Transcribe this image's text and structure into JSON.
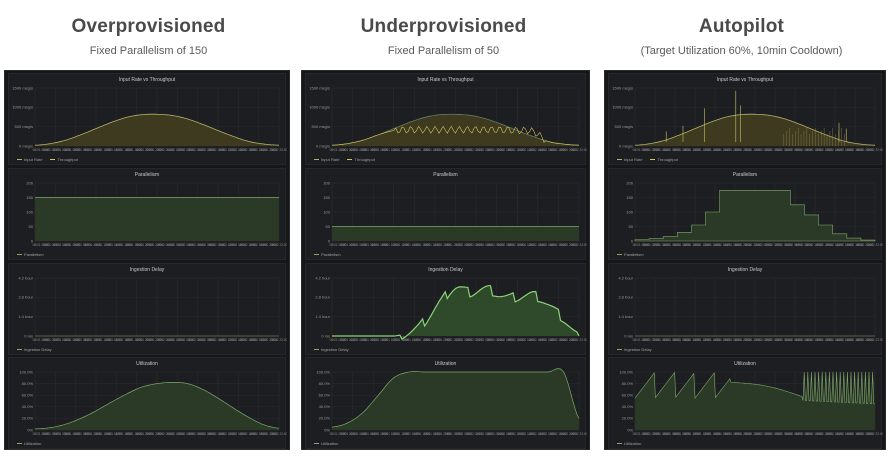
{
  "columns": [
    {
      "title": "Overprovisioned",
      "subtitle": "Fixed Parallelism of 150",
      "panels": [
        {
          "title": "Input Rate vs Throughput",
          "legend": [
            "Input Rate",
            "Throughput"
          ],
          "yticks": [
            "0 msg/s",
            "500 msg/s",
            "1000 msg/s",
            "1500 msg/s"
          ]
        },
        {
          "title": "Parallelism",
          "legend": [
            "Parallelism"
          ],
          "yticks": [
            "0",
            "50",
            "100",
            "150",
            "200"
          ]
        },
        {
          "title": "Ingestion Delay",
          "legend": [
            "Ingestion Delay"
          ],
          "yticks": [
            "0 ms",
            "1.4 hour",
            "2.8 hour",
            "4.2 hour"
          ]
        },
        {
          "title": "Utilization",
          "legend": [
            "Utilization"
          ],
          "yticks": [
            "0%",
            "20.0%",
            "40.0%",
            "60.0%",
            "80.0%",
            "100.0%"
          ]
        }
      ]
    },
    {
      "title": "Underprovisioned",
      "subtitle": "Fixed Parallelism of 50",
      "panels": [
        {
          "title": "Input Rate vs Throughput",
          "legend": [
            "Input Rate",
            "Throughput"
          ],
          "yticks": [
            "0 msg/s",
            "500 msg/s",
            "1000 msg/s",
            "1500 msg/s"
          ]
        },
        {
          "title": "Parallelism",
          "legend": [
            "Parallelism"
          ],
          "yticks": [
            "0",
            "50",
            "100",
            "150",
            "200"
          ]
        },
        {
          "title": "Ingestion Delay",
          "legend": [
            "Ingestion Delay"
          ],
          "yticks": [
            "0 ms",
            "1.4 hour",
            "2.8 hour",
            "4.2 hour"
          ]
        },
        {
          "title": "Utilization",
          "legend": [
            "Utilization"
          ],
          "yticks": [
            "0%",
            "20.0%",
            "40.0%",
            "60.0%",
            "80.0%",
            "100.0%"
          ]
        }
      ]
    },
    {
      "title": "Autopilot",
      "subtitle": "(Target Utilization 60%, 10min Cooldown)",
      "panels": [
        {
          "title": "Input Rate vs Throughput",
          "legend": [
            "Input Rate",
            "Throughput"
          ],
          "yticks": [
            "0 msg/s",
            "500 msg/s",
            "1000 msg/s",
            "1500 msg/s"
          ]
        },
        {
          "title": "Parallelism",
          "legend": [
            "Parallelism"
          ],
          "yticks": [
            "0",
            "50",
            "100",
            "150",
            "200"
          ]
        },
        {
          "title": "Ingestion Delay",
          "legend": [
            "Ingestion Delay"
          ],
          "yticks": [
            "0 ms",
            "1.4 hour",
            "2.8 hour",
            "4.2 hour"
          ]
        },
        {
          "title": "Utilization",
          "legend": [
            "Utilization"
          ],
          "yticks": [
            "0%",
            "20.0%",
            "40.0%",
            "60.0%",
            "80.0%",
            "100.0%"
          ]
        }
      ]
    }
  ],
  "colors": {
    "input_rate": "#b5b06a",
    "throughput": "#d6c45a",
    "green_line": "#7fa86a",
    "green_fill": "#2b3a27",
    "yellow_fill": "#3d3a1f",
    "grid": "#2c2d30",
    "delay_bright": "#8cd17a"
  },
  "chart_data": [
    {
      "type": "area",
      "scenario": "Overprovisioned",
      "title": "Input Rate vs Throughput",
      "series": [
        {
          "name": "Input Rate",
          "values": [
            20,
            60,
            150,
            290,
            450,
            610,
            740,
            810,
            820,
            790,
            700,
            560,
            400,
            250,
            120,
            50,
            20
          ]
        },
        {
          "name": "Throughput",
          "values": [
            20,
            60,
            150,
            290,
            450,
            610,
            740,
            810,
            820,
            790,
            700,
            560,
            400,
            250,
            120,
            50,
            20
          ]
        }
      ],
      "ylim": [
        0,
        1500
      ],
      "ylabel": "msg/s"
    },
    {
      "type": "area",
      "scenario": "Overprovisioned",
      "title": "Parallelism",
      "series": [
        {
          "name": "Parallelism",
          "values": [
            150,
            150,
            150,
            150,
            150,
            150,
            150,
            150,
            150,
            150,
            150,
            150,
            150,
            150,
            150,
            150,
            150
          ]
        }
      ],
      "ylim": [
        0,
        200
      ]
    },
    {
      "type": "area",
      "scenario": "Overprovisioned",
      "title": "Ingestion Delay",
      "series": [
        {
          "name": "Ingestion Delay",
          "values": [
            0,
            0,
            0,
            0,
            0,
            0,
            0,
            0,
            0,
            0,
            0,
            0,
            0,
            0,
            0,
            0,
            0
          ]
        }
      ],
      "ylabel": "hour"
    },
    {
      "type": "area",
      "scenario": "Overprovisioned",
      "title": "Utilization",
      "series": [
        {
          "name": "Utilization",
          "values": [
            2,
            4,
            10,
            20,
            33,
            48,
            62,
            74,
            80,
            82,
            80,
            70,
            55,
            38,
            22,
            9,
            3
          ]
        }
      ],
      "ylim": [
        0,
        100
      ],
      "ylabel": "%"
    },
    {
      "type": "area",
      "scenario": "Underprovisioned",
      "title": "Input Rate vs Throughput",
      "series": [
        {
          "name": "Input Rate",
          "values": [
            20,
            60,
            150,
            290,
            450,
            610,
            740,
            810,
            820,
            790,
            700,
            560,
            400,
            250,
            120,
            50,
            20
          ]
        },
        {
          "name": "Throughput",
          "values": [
            20,
            60,
            150,
            290,
            400,
            420,
            420,
            420,
            420,
            420,
            420,
            420,
            400,
            380,
            120,
            50,
            20
          ]
        }
      ],
      "ylim": [
        0,
        1500
      ],
      "ylabel": "msg/s"
    },
    {
      "type": "area",
      "scenario": "Underprovisioned",
      "title": "Parallelism",
      "series": [
        {
          "name": "Parallelism",
          "values": [
            50,
            50,
            50,
            50,
            50,
            50,
            50,
            50,
            50,
            50,
            50,
            50,
            50,
            50,
            50,
            50,
            50
          ]
        }
      ],
      "ylim": [
        0,
        200
      ]
    },
    {
      "type": "area",
      "scenario": "Underprovisioned",
      "title": "Ingestion Delay",
      "series": [
        {
          "name": "Ingestion Delay",
          "values": [
            0,
            0,
            0,
            0,
            0,
            0.3,
            1.2,
            2.8,
            4.0,
            3.6,
            3.9,
            3.3,
            3.2,
            3.4,
            2.6,
            1.4,
            0
          ]
        }
      ],
      "ylim": [
        0,
        4.8
      ],
      "ylabel": "hour"
    },
    {
      "type": "area",
      "scenario": "Underprovisioned",
      "title": "Utilization",
      "series": [
        {
          "name": "Utilization",
          "values": [
            5,
            12,
            30,
            60,
            90,
            100,
            100,
            100,
            100,
            100,
            100,
            100,
            100,
            100,
            100,
            100,
            20
          ]
        }
      ],
      "ylim": [
        0,
        100
      ],
      "ylabel": "%"
    },
    {
      "type": "area",
      "scenario": "Autopilot",
      "title": "Input Rate vs Throughput",
      "series": [
        {
          "name": "Input Rate",
          "values": [
            20,
            60,
            150,
            290,
            450,
            610,
            740,
            810,
            820,
            790,
            700,
            560,
            400,
            250,
            120,
            50,
            20
          ]
        },
        {
          "name": "Throughput",
          "values": [
            20,
            60,
            150,
            290,
            450,
            610,
            740,
            810,
            820,
            790,
            700,
            560,
            400,
            250,
            120,
            50,
            20
          ]
        }
      ],
      "annotations": [
        "throughput spikes up to ~1400 msg/s after scale-ups"
      ],
      "ylim": [
        0,
        1500
      ],
      "ylabel": "msg/s"
    },
    {
      "type": "area",
      "scenario": "Autopilot",
      "title": "Parallelism",
      "series": [
        {
          "name": "Parallelism",
          "values": [
            5,
            8,
            15,
            30,
            55,
            100,
            175,
            175,
            175,
            175,
            175,
            125,
            90,
            55,
            25,
            10,
            3
          ]
        }
      ],
      "ylim": [
        0,
        200
      ]
    },
    {
      "type": "area",
      "scenario": "Autopilot",
      "title": "Ingestion Delay",
      "series": [
        {
          "name": "Ingestion Delay",
          "values": [
            0,
            0,
            0,
            0,
            0,
            0,
            0,
            0,
            0,
            0,
            0,
            0,
            0,
            0,
            0,
            0,
            0
          ]
        }
      ],
      "ylabel": "hour"
    },
    {
      "type": "area",
      "scenario": "Autopilot",
      "title": "Utilization",
      "series": [
        {
          "name": "Utilization",
          "values": [
            60,
            100,
            60,
            100,
            60,
            100,
            100,
            82,
            87,
            88,
            85,
            75,
            60,
            100,
            55,
            100,
            45
          ]
        }
      ],
      "ylim": [
        0,
        100
      ],
      "ylabel": "%"
    }
  ]
}
